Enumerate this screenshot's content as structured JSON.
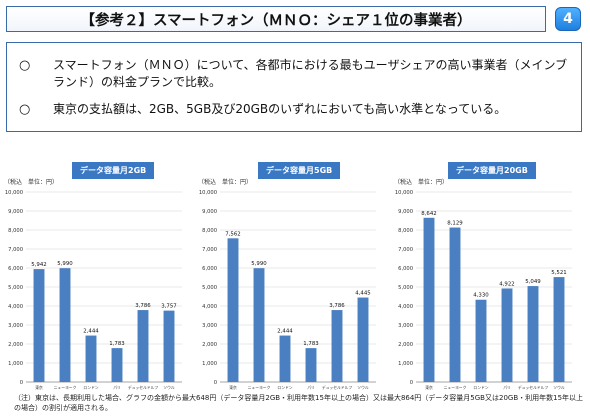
{
  "header": {
    "title": "【参考２】スマートフォン（ＭＮＯ：シェア１位の事業者）",
    "page_number": "4"
  },
  "summary": {
    "bullets": [
      {
        "mark": "○",
        "text": "スマートフォン（ＭＮＯ）について、各都市における最もユーザシェアの高い事業者（メインブランド）の料金プランで比較。"
      },
      {
        "mark": "○",
        "text": "東京の支払額は、2GB、5GB及び20GBのいずれにおいても高い水準となっている。"
      }
    ]
  },
  "footnote": "（注）東京は、長期利用した場合、グラフの金額から最大648円（データ容量月2GB・利用年数15年以上の場合）又は最大864円（データ容量月5GB又は20GB・利用年数15年以上の場合）の割引が適用される。",
  "colors": {
    "bar": "#4a7fc1",
    "title_bg": "#3a78c4",
    "frame": "#3a6aa8"
  },
  "chart_data": [
    {
      "type": "bar",
      "title": "データ容量月2GB",
      "unit_label": "（税込　単位：円）",
      "categories": [
        "東京",
        "ニューヨーク",
        "ロンドン",
        "パリ",
        "デュッセルドルフ",
        "ソウル"
      ],
      "values": [
        5942,
        5990,
        2444,
        1783,
        3786,
        3757
      ],
      "value_labels": [
        "5,942",
        "5,990",
        "2,444",
        "1,783",
        "3,786",
        "3,757"
      ],
      "ylim": [
        0,
        10000
      ],
      "yticks": [
        "0",
        "1,000",
        "2,000",
        "3,000",
        "4,000",
        "5,000",
        "6,000",
        "7,000",
        "8,000",
        "9,000",
        "10,000"
      ],
      "grid": true
    },
    {
      "type": "bar",
      "title": "データ容量月5GB",
      "unit_label": "（税込　単位：円）",
      "categories": [
        "東京",
        "ニューヨーク",
        "ロンドン",
        "パリ",
        "デュッセルドルフ",
        "ソウル"
      ],
      "values": [
        7562,
        5990,
        2444,
        1783,
        3786,
        4445
      ],
      "value_labels": [
        "7,562",
        "5,990",
        "2,444",
        "1,783",
        "3,786",
        "4,445"
      ],
      "ylim": [
        0,
        10000
      ],
      "yticks": [
        "0",
        "1,000",
        "2,000",
        "3,000",
        "4,000",
        "5,000",
        "6,000",
        "7,000",
        "8,000",
        "9,000",
        "10,000"
      ],
      "grid": true
    },
    {
      "type": "bar",
      "title": "データ容量月20GB",
      "unit_label": "（税込　単位：円）",
      "categories": [
        "東京",
        "ニューヨーク",
        "ロンドン",
        "パリ",
        "デュッセルドルフ",
        "ソウル"
      ],
      "values": [
        8642,
        8129,
        4330,
        4922,
        5049,
        5521
      ],
      "value_labels": [
        "8,642",
        "8,129",
        "4,330",
        "4,922",
        "5,049",
        "5,521"
      ],
      "ylim": [
        0,
        10000
      ],
      "yticks": [
        "0",
        "1,000",
        "2,000",
        "3,000",
        "4,000",
        "5,000",
        "6,000",
        "7,000",
        "8,000",
        "9,000",
        "10,000"
      ],
      "grid": true
    }
  ]
}
